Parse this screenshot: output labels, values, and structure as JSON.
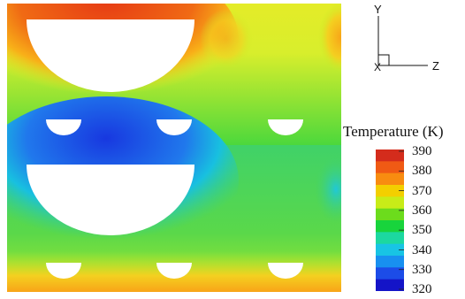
{
  "legend": {
    "title": "Temperature (K)",
    "ticks": [
      "390",
      "380",
      "370",
      "360",
      "350",
      "340",
      "330",
      "320"
    ],
    "colors": [
      "#d42c1c",
      "#f05a14",
      "#f88c10",
      "#f3cf00",
      "#c8ec18",
      "#6cdc1c",
      "#18d43c",
      "#1cd8a0",
      "#18c4e4",
      "#1890f0",
      "#1c4ce8",
      "#1414c8"
    ]
  },
  "axes": {
    "y_label": "Y",
    "z_label": "Z",
    "x_label": "X"
  },
  "field": {
    "hot_color": "#e83e14",
    "warm_color": "#f8a018",
    "mid_color": "#c4e830",
    "cool_color": "#38cc74",
    "cold_color": "#2460e0"
  }
}
